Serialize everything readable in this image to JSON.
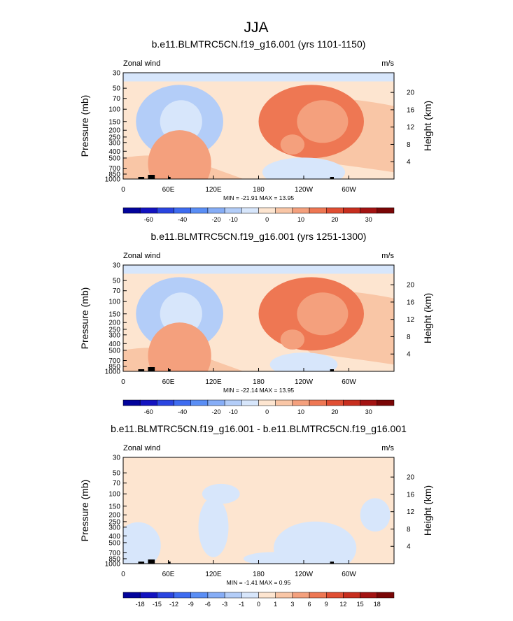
{
  "page_title": "JJA",
  "chart_data": [
    {
      "type": "heatmap",
      "title": "b.e11.BLMTRC5CN.f19_g16.001 (yrs 1101-1150)",
      "left_label": "Zonal wind",
      "right_label": "m/s",
      "ylabel": "Pressure (mb)",
      "y2label": "Height (km)",
      "x_ticks": [
        "0",
        "60E",
        "120E",
        "180",
        "120W",
        "60W"
      ],
      "x_tick_values": [
        0,
        60,
        120,
        180,
        240,
        300
      ],
      "xlim": [
        0,
        360
      ],
      "y_ticks": [
        "30",
        "50",
        "70",
        "100",
        "150",
        "200",
        "250",
        "300",
        "400",
        "500",
        "700",
        "850",
        "1000"
      ],
      "y_tick_values": [
        30,
        50,
        70,
        100,
        150,
        200,
        250,
        300,
        400,
        500,
        700,
        850,
        1000
      ],
      "ylim": [
        1000,
        30
      ],
      "height_ticks": [
        "4",
        "8",
        "12",
        "16",
        "20"
      ],
      "height_tick_values": [
        4,
        8,
        12,
        16,
        20
      ],
      "minmax": "MIN = -21.91  MAX = 13.95",
      "colorbar_labels": [
        "-60",
        "-40",
        "-20",
        "-10",
        "0",
        "10",
        "20",
        "30"
      ],
      "colorbar_colors": [
        "#02039b",
        "#1313c0",
        "#2a45e0",
        "#3e6cf0",
        "#5a8ef5",
        "#86adf6",
        "#b3cdf8",
        "#d7e6fb",
        "#fde5d0",
        "#f9c6a6",
        "#f4a07d",
        "#ee7753",
        "#e04e33",
        "#c72e1e",
        "#a31312",
        "#7a0606"
      ],
      "blobs": [
        {
          "lon": 75,
          "p": 150,
          "rlon": 58,
          "rp": 0.55,
          "val": -14
        },
        {
          "lon": 77,
          "p": 150,
          "rlon": 28,
          "rp": 0.32,
          "val": -9
        },
        {
          "lon": 250,
          "p": 150,
          "rlon": 70,
          "rp": 0.55,
          "val": 12
        },
        {
          "lon": 265,
          "p": 150,
          "rlon": 34,
          "rp": 0.32,
          "val": 7
        },
        {
          "lon": 75,
          "p": 600,
          "rlon": 42,
          "rp": 0.5,
          "val": 8
        },
        {
          "lon": 225,
          "p": 320,
          "rlon": 16,
          "rp": 0.15,
          "val": 5
        },
        {
          "lon": 240,
          "p": 800,
          "rlon": 55,
          "rp": 0.22,
          "val": -8
        }
      ],
      "base": -5
    },
    {
      "type": "heatmap",
      "title": "b.e11.BLMTRC5CN.f19_g16.001 (yrs 1251-1300)",
      "left_label": "Zonal wind",
      "right_label": "m/s",
      "ylabel": "Pressure (mb)",
      "y2label": "Height (km)",
      "x_ticks": [
        "0",
        "60E",
        "120E",
        "180",
        "120W",
        "60W"
      ],
      "x_tick_values": [
        0,
        60,
        120,
        180,
        240,
        300
      ],
      "xlim": [
        0,
        360
      ],
      "y_ticks": [
        "30",
        "50",
        "70",
        "100",
        "150",
        "200",
        "250",
        "300",
        "400",
        "500",
        "700",
        "850",
        "1000"
      ],
      "y_tick_values": [
        30,
        50,
        70,
        100,
        150,
        200,
        250,
        300,
        400,
        500,
        700,
        850,
        1000
      ],
      "ylim": [
        1000,
        30
      ],
      "height_ticks": [
        "4",
        "8",
        "12",
        "16",
        "20"
      ],
      "height_tick_values": [
        4,
        8,
        12,
        16,
        20
      ],
      "minmax": "MIN = -22.14  MAX = 13.95",
      "colorbar_labels": [
        "-60",
        "-40",
        "-20",
        "-10",
        "0",
        "10",
        "20",
        "30"
      ],
      "colorbar_colors": [
        "#02039b",
        "#1313c0",
        "#2a45e0",
        "#3e6cf0",
        "#5a8ef5",
        "#86adf6",
        "#b3cdf8",
        "#d7e6fb",
        "#fde5d0",
        "#f9c6a6",
        "#f4a07d",
        "#ee7753",
        "#e04e33",
        "#c72e1e",
        "#a31312",
        "#7a0606"
      ],
      "blobs": [
        {
          "lon": 75,
          "p": 150,
          "rlon": 58,
          "rp": 0.55,
          "val": -14
        },
        {
          "lon": 77,
          "p": 150,
          "rlon": 28,
          "rp": 0.32,
          "val": -9
        },
        {
          "lon": 250,
          "p": 150,
          "rlon": 70,
          "rp": 0.55,
          "val": 12
        },
        {
          "lon": 265,
          "p": 150,
          "rlon": 34,
          "rp": 0.32,
          "val": 7
        },
        {
          "lon": 75,
          "p": 600,
          "rlon": 42,
          "rp": 0.5,
          "val": 8
        },
        {
          "lon": 225,
          "p": 350,
          "rlon": 16,
          "rp": 0.15,
          "val": 5
        },
        {
          "lon": 240,
          "p": 800,
          "rlon": 45,
          "rp": 0.18,
          "val": -6
        }
      ],
      "base": -5
    },
    {
      "type": "heatmap",
      "title": "b.e11.BLMTRC5CN.f19_g16.001 - b.e11.BLMTRC5CN.f19_g16.001",
      "left_label": "Zonal wind",
      "right_label": "m/s",
      "ylabel": "Pressure (mb)",
      "y2label": "Height (km)",
      "x_ticks": [
        "0",
        "60E",
        "120E",
        "180",
        "120W",
        "60W"
      ],
      "x_tick_values": [
        0,
        60,
        120,
        180,
        240,
        300
      ],
      "xlim": [
        0,
        360
      ],
      "y_ticks": [
        "30",
        "50",
        "70",
        "100",
        "150",
        "200",
        "250",
        "300",
        "400",
        "500",
        "700",
        "850",
        "1000"
      ],
      "y_tick_values": [
        30,
        50,
        70,
        100,
        150,
        200,
        250,
        300,
        400,
        500,
        700,
        850,
        1000
      ],
      "ylim": [
        1000,
        30
      ],
      "height_ticks": [
        "4",
        "8",
        "12",
        "16",
        "20"
      ],
      "height_tick_values": [
        4,
        8,
        12,
        16,
        20
      ],
      "minmax": "MIN = -1.41  MAX =  0.95",
      "colorbar_labels": [
        "-18",
        "-15",
        "-12",
        "-9",
        "-6",
        "-3",
        "-1",
        "0",
        "1",
        "3",
        "6",
        "9",
        "12",
        "15",
        "18"
      ],
      "colorbar_colors": [
        "#02039b",
        "#1313c0",
        "#2a45e0",
        "#3e6cf0",
        "#5a8ef5",
        "#86adf6",
        "#b3cdf8",
        "#d7e6fb",
        "#fde5d0",
        "#f9c6a6",
        "#f4a07d",
        "#ee7753",
        "#e04e33",
        "#c72e1e",
        "#a31312",
        "#7a0606"
      ],
      "blobs": [
        {
          "lon": 130,
          "p": 100,
          "rlon": 25,
          "rp": 0.15,
          "val": -1
        },
        {
          "lon": 120,
          "p": 300,
          "rlon": 20,
          "rp": 0.45,
          "val": -1
        },
        {
          "lon": 20,
          "p": 550,
          "rlon": 30,
          "rp": 0.35,
          "val": -1
        },
        {
          "lon": 255,
          "p": 600,
          "rlon": 55,
          "rp": 0.4,
          "val": -1
        },
        {
          "lon": 335,
          "p": 200,
          "rlon": 20,
          "rp": 0.25,
          "val": -1
        },
        {
          "lon": 200,
          "p": 850,
          "rlon": 40,
          "rp": 0.1,
          "val": -1
        }
      ],
      "base": 1
    }
  ]
}
